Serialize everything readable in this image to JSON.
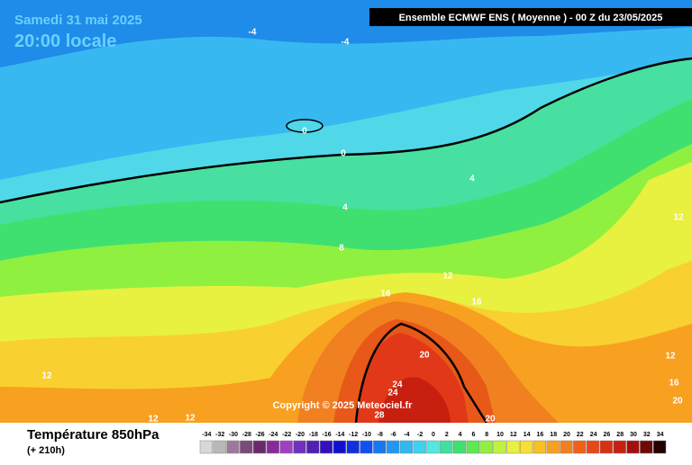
{
  "header": {
    "date": "Samedi 31 mai 2025",
    "time": "20:00 locale",
    "model": "Ensemble ECMWF ENS  ( Moyenne )  -  00 Z du 23/05/2025"
  },
  "contour_labels": [
    "-4",
    "-4",
    "0",
    "0",
    "4",
    "4",
    "8",
    "12",
    "12",
    "16",
    "16",
    "20",
    "24",
    "24",
    "28",
    "12",
    "12",
    "12",
    "20",
    "12",
    "16",
    "20"
  ],
  "copyright": "Copyright © 2025 Meteociel.fr",
  "footer": {
    "title": "Température 850hPa",
    "lead": "(+ 210h)"
  },
  "legend": {
    "labels": [
      "-34",
      "-32",
      "-30",
      "-28",
      "-26",
      "-24",
      "-22",
      "-20",
      "-18",
      "-16",
      "-14",
      "-12",
      "-10",
      "-8",
      "-6",
      "-4",
      "-2",
      "0",
      "2",
      "4",
      "6",
      "8",
      "10",
      "12",
      "14",
      "16",
      "18",
      "20",
      "22",
      "24",
      "26",
      "28",
      "30",
      "32",
      "34"
    ],
    "colors": [
      "#d8d8d8",
      "#b8b8b8",
      "#9a7a9a",
      "#7a4a7a",
      "#6a2a6a",
      "#8a2a9a",
      "#a040c0",
      "#7030c0",
      "#5020b0",
      "#3010c0",
      "#1010d0",
      "#1030e0",
      "#1050f0",
      "#1878f0",
      "#2098f0",
      "#30b8f0",
      "#40d0f0",
      "#50e8e0",
      "#40e0a0",
      "#40e070",
      "#60e850",
      "#90f040",
      "#c0f040",
      "#e8f040",
      "#f8e030",
      "#f8c020",
      "#f8a020",
      "#f08020",
      "#f06018",
      "#e84818",
      "#d83010",
      "#c82010",
      "#a01010",
      "#700808",
      "#200000"
    ]
  }
}
